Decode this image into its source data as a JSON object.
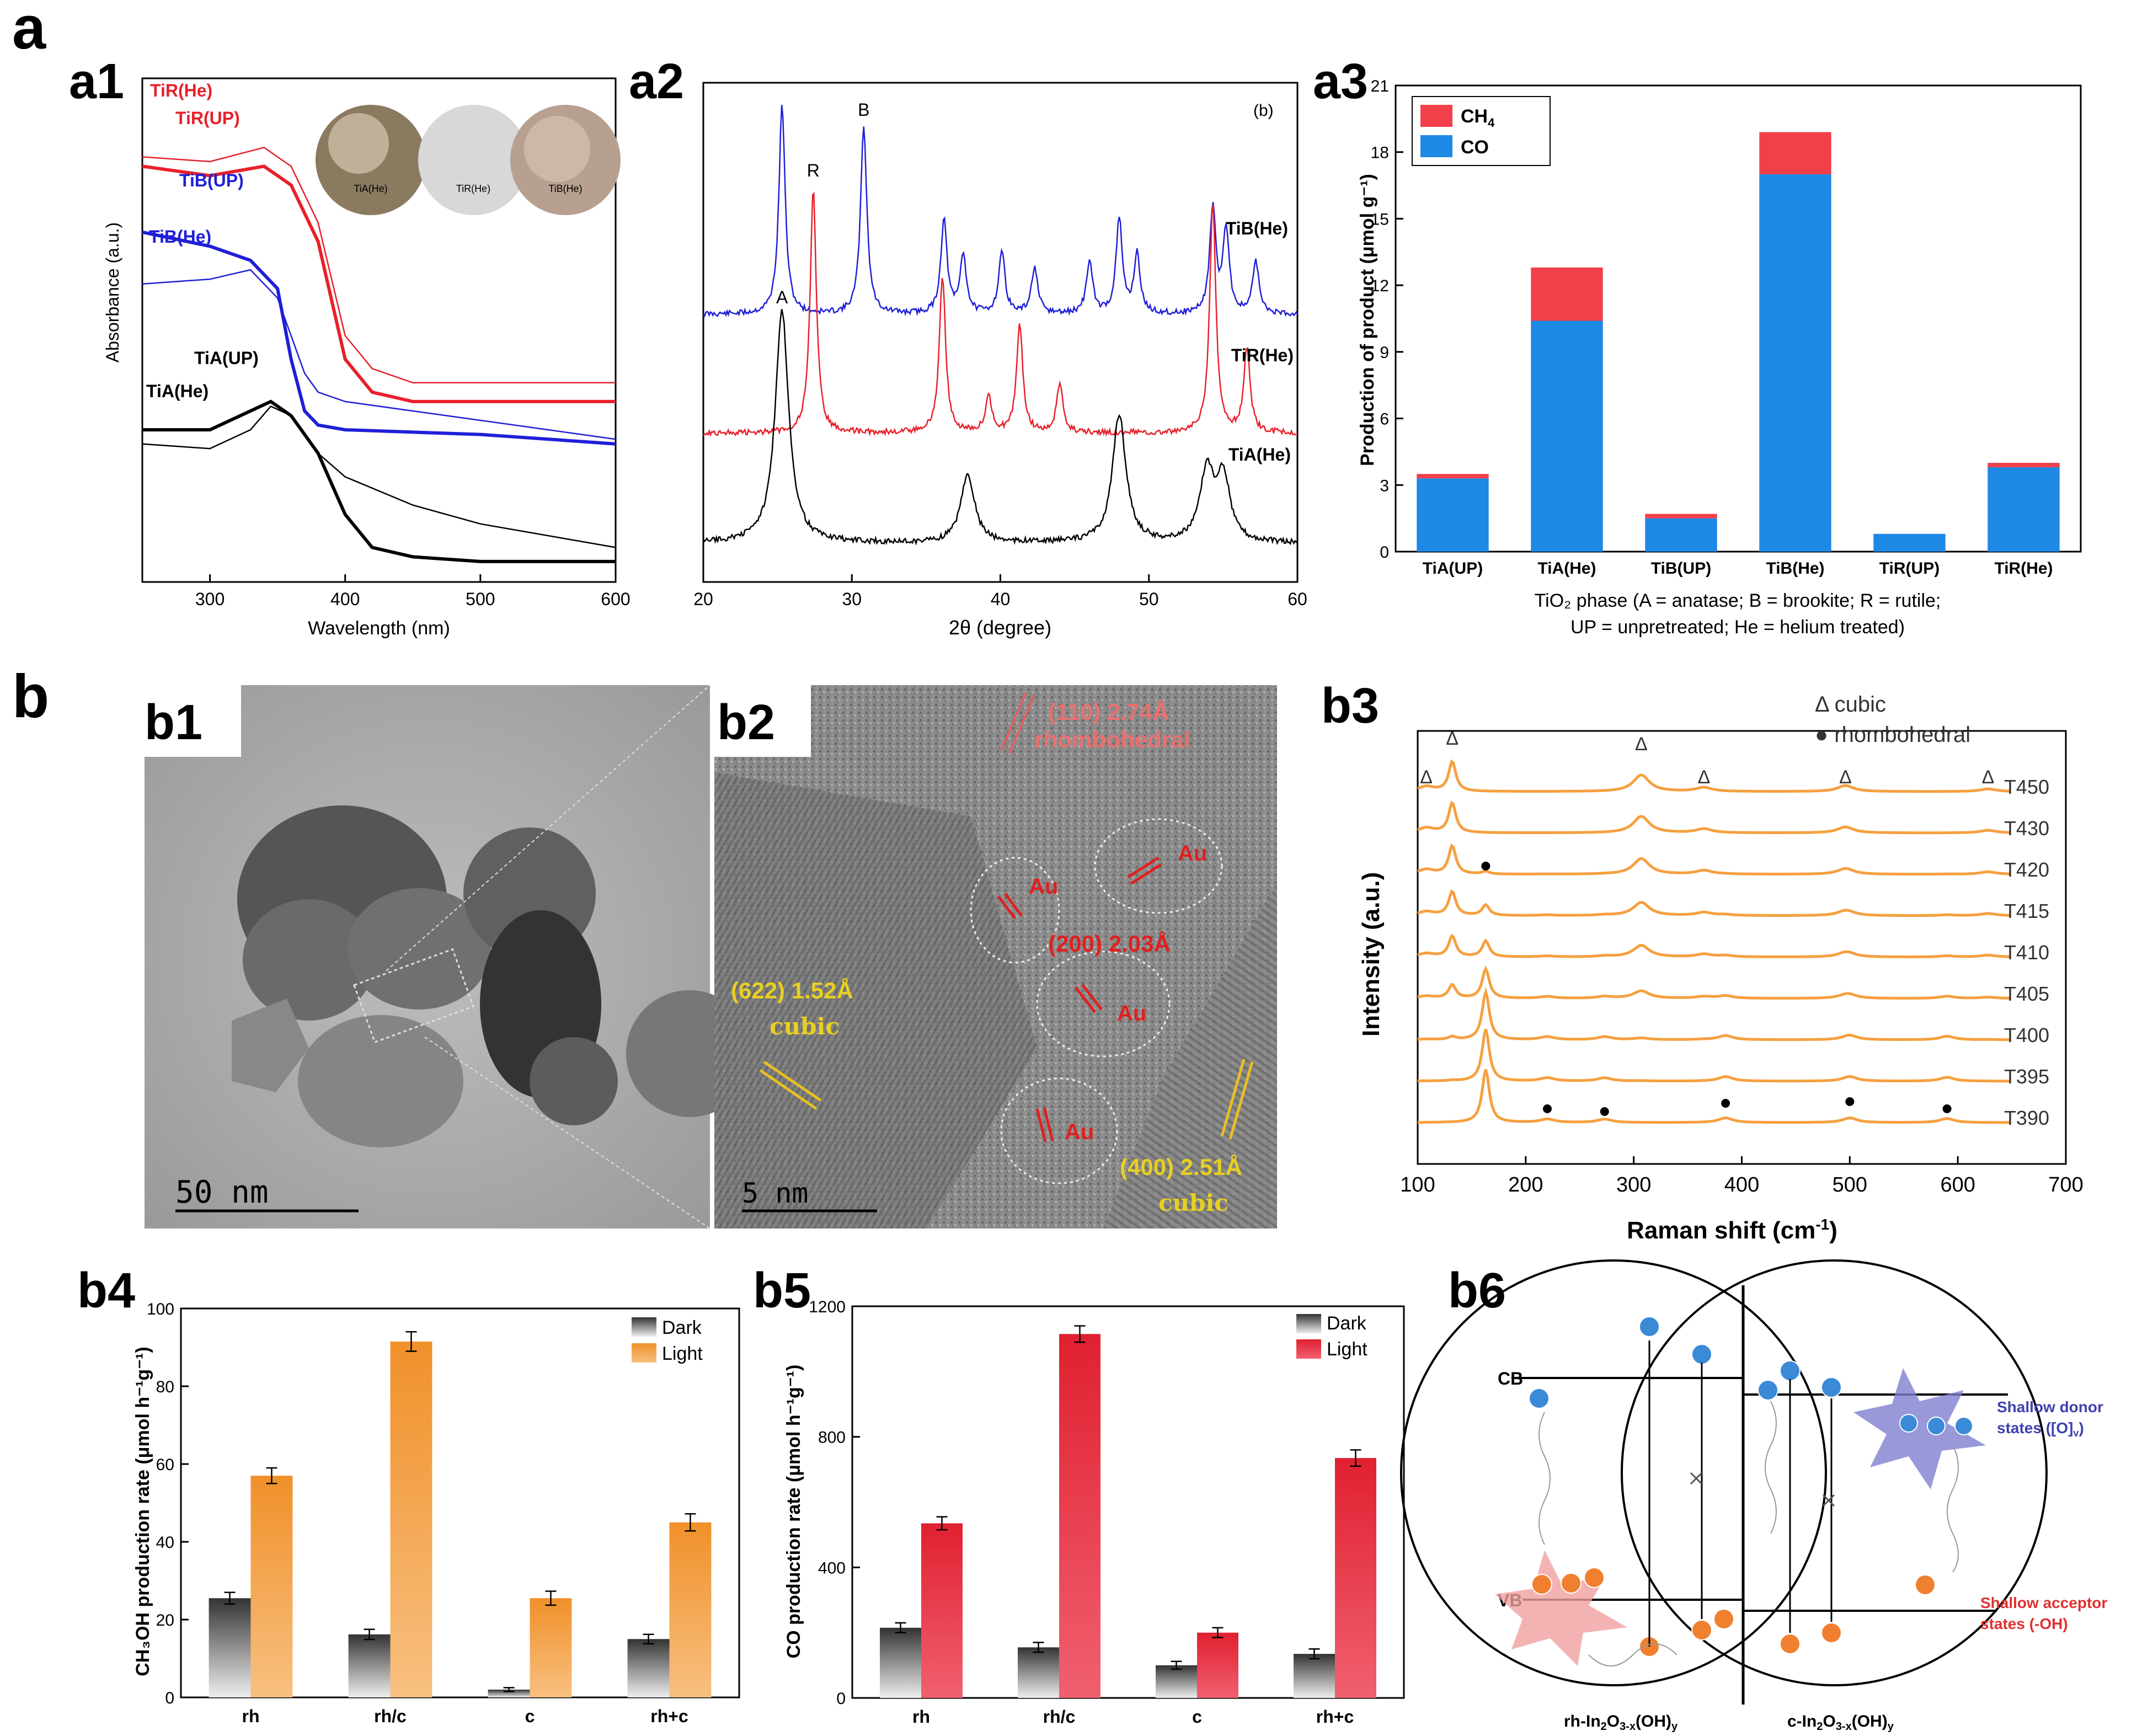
{
  "panel_labels": {
    "a": "a",
    "a1": "a1",
    "a2": "a2",
    "a3": "a3",
    "b": "b",
    "b1": "b1",
    "b2": "b2",
    "b3": "b3",
    "b4": "b4",
    "b5": "b5",
    "b6": "b6"
  },
  "colors": {
    "red": "#e8202a",
    "blue": "#1f1fd8",
    "black": "#000000",
    "ch4": "#f2404a",
    "co": "#1e88e5",
    "orange": "#f5a040",
    "co_red": "#e8303a",
    "dark": "#666666"
  },
  "chart_data": [
    {
      "id": "a1",
      "type": "line",
      "title": "",
      "xlabel": "Wavelength (nm)",
      "ylabel": "Absorbance (a.u.)",
      "xlim": [
        250,
        600
      ],
      "xticks": [
        300,
        400,
        500,
        600
      ],
      "series": [
        {
          "name": "TiR(He)",
          "color": "#e8202a",
          "x": [
            250,
            300,
            340,
            360,
            380,
            400,
            420,
            450,
            500,
            600
          ],
          "y": [
            0.86,
            0.84,
            0.86,
            0.82,
            0.7,
            0.45,
            0.38,
            0.36,
            0.36,
            0.36
          ]
        },
        {
          "name": "TiR(UP)",
          "color": "#e8202a",
          "x": [
            250,
            300,
            340,
            360,
            380,
            400,
            420,
            450,
            500,
            600
          ],
          "y": [
            0.88,
            0.87,
            0.9,
            0.86,
            0.74,
            0.5,
            0.43,
            0.4,
            0.4,
            0.4
          ]
        },
        {
          "name": "TiB(UP)",
          "color": "#1f1fd8",
          "x": [
            250,
            300,
            330,
            350,
            360,
            370,
            380,
            400,
            500,
            600
          ],
          "y": [
            0.72,
            0.69,
            0.66,
            0.6,
            0.45,
            0.34,
            0.31,
            0.3,
            0.29,
            0.27
          ]
        },
        {
          "name": "TiB(He)",
          "color": "#1f1fd8",
          "x": [
            250,
            300,
            330,
            350,
            360,
            370,
            380,
            400,
            450,
            500,
            600
          ],
          "y": [
            0.61,
            0.62,
            0.64,
            0.58,
            0.5,
            0.42,
            0.38,
            0.36,
            0.34,
            0.32,
            0.28
          ]
        },
        {
          "name": "TiA(UP)",
          "color": "#000000",
          "x": [
            250,
            300,
            330,
            345,
            360,
            380,
            400,
            450,
            500,
            600
          ],
          "y": [
            0.27,
            0.26,
            0.3,
            0.35,
            0.33,
            0.25,
            0.2,
            0.14,
            0.1,
            0.05
          ]
        },
        {
          "name": "TiA(He)",
          "color": "#000000",
          "x": [
            250,
            300,
            330,
            345,
            360,
            380,
            400,
            420,
            450,
            500,
            600
          ],
          "y": [
            0.3,
            0.3,
            0.34,
            0.36,
            0.33,
            0.25,
            0.12,
            0.05,
            0.03,
            0.02,
            0.02
          ]
        }
      ],
      "inset_labels": [
        "TiA(He)",
        "TiR(He)",
        "TiB(He)"
      ]
    },
    {
      "id": "a2",
      "type": "line",
      "xlabel": "2θ (degree)",
      "ylabel": "",
      "xlim": [
        20,
        60
      ],
      "xticks": [
        20,
        30,
        40,
        50,
        60
      ],
      "annotation": "(b)",
      "peak_labels": [
        {
          "text": "B",
          "x": 30.8
        },
        {
          "text": "R",
          "x": 27.4
        },
        {
          "text": "A",
          "x": 25.3
        }
      ],
      "series": [
        {
          "name": "TiB(He)",
          "color": "#1f1fd8",
          "peaks": [
            [
              25.3,
              1.0
            ],
            [
              30.8,
              0.9
            ],
            [
              36.2,
              0.45
            ],
            [
              37.5,
              0.28
            ],
            [
              40.1,
              0.3
            ],
            [
              42.3,
              0.22
            ],
            [
              46.0,
              0.25
            ],
            [
              48.0,
              0.45
            ],
            [
              49.2,
              0.28
            ],
            [
              54.3,
              0.5
            ],
            [
              55.2,
              0.4
            ],
            [
              57.2,
              0.25
            ]
          ]
        },
        {
          "name": "TiR(He)",
          "color": "#e8202a",
          "peaks": [
            [
              27.4,
              1.0
            ],
            [
              36.1,
              0.65
            ],
            [
              39.2,
              0.15
            ],
            [
              41.3,
              0.45
            ],
            [
              44.0,
              0.2
            ],
            [
              54.3,
              0.95
            ],
            [
              56.6,
              0.35
            ]
          ]
        },
        {
          "name": "TiA(He)",
          "color": "#000000",
          "peaks": [
            [
              25.3,
              1.0
            ],
            [
              37.8,
              0.3
            ],
            [
              48.0,
              0.55
            ],
            [
              53.9,
              0.3
            ],
            [
              55.0,
              0.28
            ]
          ]
        }
      ]
    },
    {
      "id": "a3",
      "type": "bar",
      "stacked": true,
      "ylabel": "Production of product (μmol g⁻¹)",
      "xlabel_line1": "TiO₂ phase (A = anatase; B = brookite; R = rutile;",
      "xlabel_line2": "UP = unpretreated; He = helium treated)",
      "ylim": [
        0,
        21
      ],
      "yticks": [
        0,
        3,
        6,
        9,
        12,
        15,
        18,
        21
      ],
      "categories": [
        "TiA(UP)",
        "TiA(He)",
        "TiB(UP)",
        "TiB(He)",
        "TiR(UP)",
        "TiR(He)"
      ],
      "series": [
        {
          "name": "CO",
          "color": "#1e88e5",
          "values": [
            3.3,
            10.4,
            1.5,
            17.0,
            0.8,
            3.8
          ]
        },
        {
          "name": "CH4",
          "color": "#f2404a",
          "values": [
            0.2,
            2.4,
            0.2,
            1.9,
            0.0,
            0.2
          ]
        }
      ],
      "legend": {
        "ch4": "CH",
        "ch4_sub": "4",
        "co": "CO"
      }
    },
    {
      "id": "b3",
      "type": "line",
      "xlabel": "Raman shift (cm",
      "xlabel_sup": "-1",
      "xlabel_end": ")",
      "ylabel": "Intensity (a.u.)",
      "xlim": [
        100,
        700
      ],
      "xticks": [
        100,
        200,
        300,
        400,
        500,
        600,
        700
      ],
      "legend": {
        "cubic": "Δ  cubic",
        "rh": "●  rhombohedral"
      },
      "cubic_marker": "Δ",
      "cubic_peaks": [
        108,
        132,
        307,
        365,
        496,
        628
      ],
      "rh_peaks": [
        163,
        220,
        273,
        385,
        500,
        590
      ],
      "series_names": [
        "T450",
        "T430",
        "T420",
        "T415",
        "T410",
        "T405",
        "T400",
        "T395",
        "T390"
      ],
      "cubic_frac": [
        1.0,
        1.0,
        0.95,
        0.8,
        0.7,
        0.45,
        0.1,
        0.02,
        0.0
      ]
    },
    {
      "id": "b4",
      "type": "bar",
      "ylabel": "CH₃OH production rate (μmol h⁻¹g⁻¹)",
      "ylim": [
        0,
        100
      ],
      "yticks": [
        0,
        20,
        40,
        60,
        80,
        100
      ],
      "categories": [
        "rh",
        "rh/c",
        "c",
        "rh+c"
      ],
      "series": [
        {
          "name": "Dark",
          "values": [
            25.5,
            16.2,
            2.0,
            15.0
          ],
          "errors": [
            1.5,
            1.3,
            0.5,
            1.2
          ]
        },
        {
          "name": "Light",
          "values": [
            57.0,
            91.5,
            25.5,
            45.0
          ],
          "errors": [
            2.0,
            2.5,
            1.8,
            2.2
          ]
        }
      ]
    },
    {
      "id": "b5",
      "type": "bar",
      "ylabel": "CO production rate (μmol h⁻¹g⁻¹)",
      "ylim": [
        0,
        1200
      ],
      "yticks": [
        0,
        400,
        800,
        1200
      ],
      "categories": [
        "rh",
        "rh/c",
        "c",
        "rh+c"
      ],
      "series": [
        {
          "name": "Dark",
          "values": [
            215,
            155,
            100,
            135
          ],
          "errors": [
            15,
            15,
            12,
            15
          ]
        },
        {
          "name": "Light",
          "values": [
            535,
            1115,
            200,
            735
          ],
          "errors": [
            20,
            25,
            15,
            25
          ]
        }
      ]
    }
  ],
  "b1": {
    "scale": "50  nm"
  },
  "b2": {
    "scale": "5  nm",
    "labels": {
      "rh_plane": "(110) 2.74Å",
      "rh_name": "rhombohedral",
      "au1": "Au",
      "au2": "Au",
      "au3": "Au",
      "au4": "Au",
      "au_plane": "(200) 2.03Å",
      "c_plane1": "(622) 1.52Å",
      "c_name1": "cubic",
      "c_plane2": "(400) 2.51Å",
      "c_name2": "cubic"
    }
  },
  "b6": {
    "cb": "CB",
    "vb": "VB",
    "donor1": "Shallow donor",
    "donor2": "states ([O]",
    "donor_sub": "v",
    "donor_end": ")",
    "acceptor1": "Shallow acceptor",
    "acceptor2": "states (-OH)",
    "left_label": "rh-In",
    "left_sub1": "2",
    "left_mid": "O",
    "left_sub2": "3-x",
    "left_end": "(OH)",
    "left_sub3": "y",
    "right_label": "c-In",
    "right_sub1": "2",
    "right_mid": "O",
    "right_sub2": "3-x",
    "right_end": "(OH)",
    "right_sub3": "y"
  }
}
